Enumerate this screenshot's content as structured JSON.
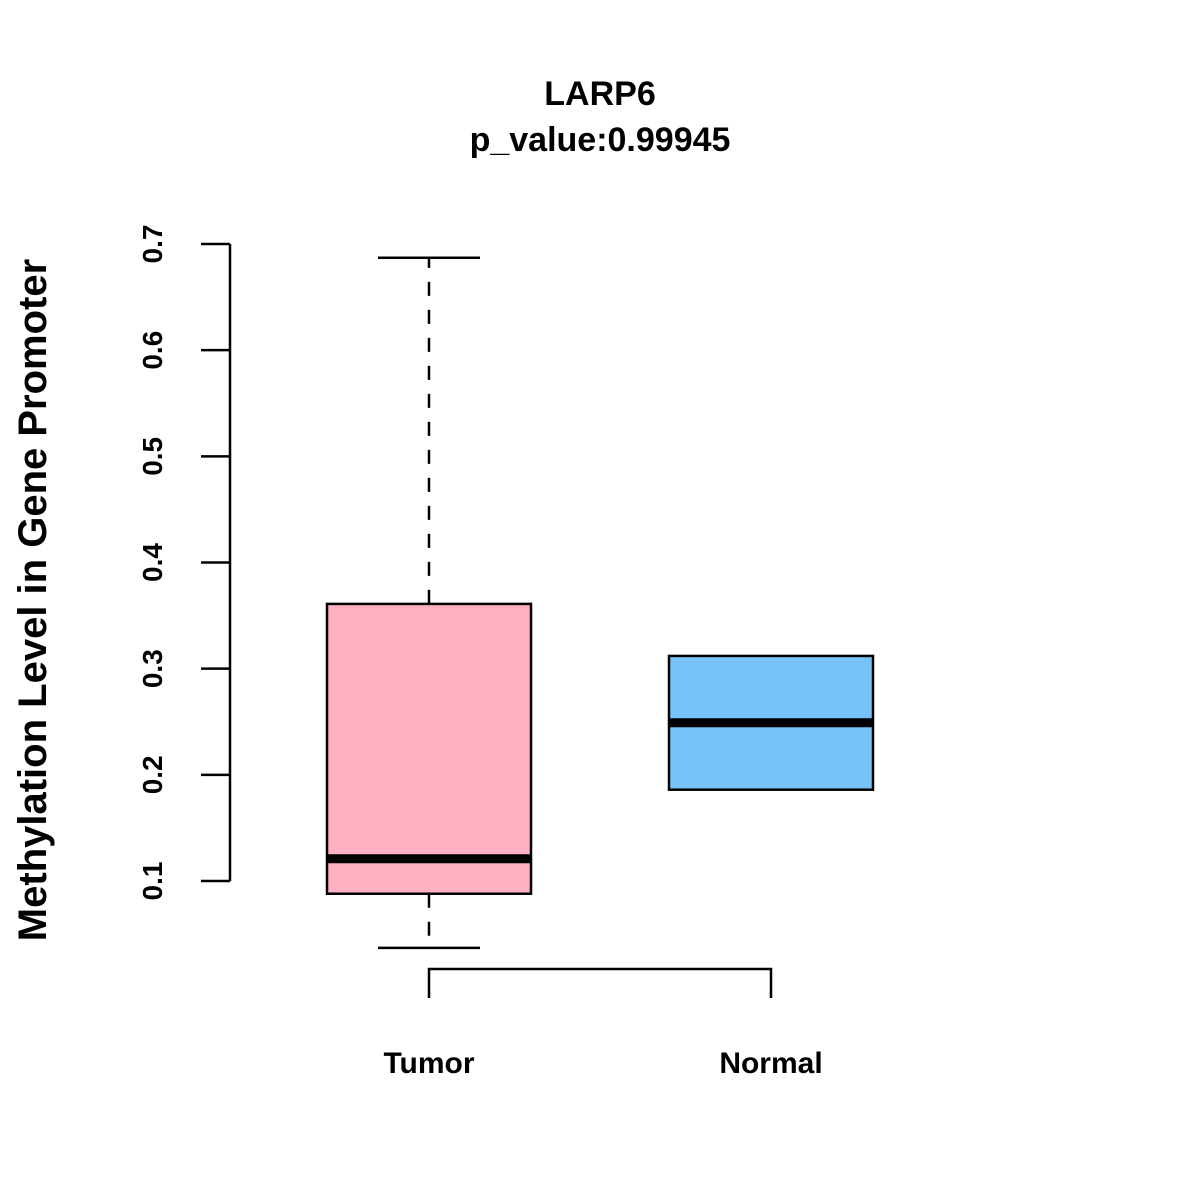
{
  "chart_data": {
    "type": "box",
    "title": "LARP6",
    "subtitle": "p_value:0.99945",
    "xlabel": "",
    "ylabel": "Methylation Level in Gene Promoter",
    "ylim": [
      0.1,
      0.7
    ],
    "yticks": [
      "0.1",
      "0.2",
      "0.3",
      "0.4",
      "0.5",
      "0.6",
      "0.7"
    ],
    "categories": [
      "Tumor",
      "Normal"
    ],
    "series": [
      {
        "name": "Tumor",
        "min": 0.037,
        "q1": 0.088,
        "median": 0.121,
        "q3": 0.361,
        "max": 0.687,
        "color": "#FDB0C2"
      },
      {
        "name": "Normal",
        "min": 0.186,
        "q1": 0.186,
        "median": 0.249,
        "q3": 0.312,
        "max": 0.312,
        "color": "#77C2F8"
      }
    ],
    "bracket": {
      "from": "Tumor",
      "to": "Normal"
    },
    "grid": false
  }
}
